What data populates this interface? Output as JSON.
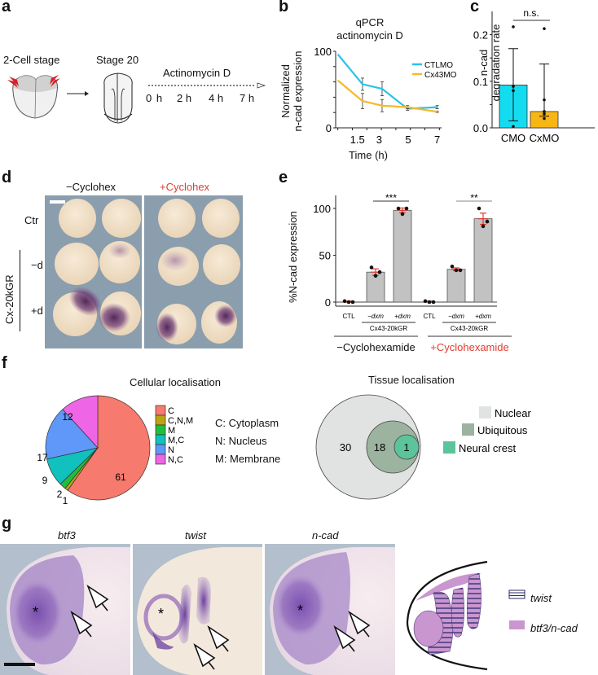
{
  "panels": {
    "a": {
      "label": "a",
      "stage1": "2-Cell stage",
      "stage2": "Stage 20",
      "treatment": "Actinomycin D",
      "timepoints": [
        "0 h",
        "2 h",
        "4 h",
        "7 h"
      ]
    },
    "d": {
      "label": "d",
      "col_minus": "−Cyclohex",
      "col_plus": "+Cyclohex",
      "row_ctr": "Ctr",
      "row_minus_d": "−d",
      "row_plus_d": "+d",
      "group_label": "Cx-20kGR"
    },
    "f": {
      "label": "f",
      "pie_title": "Cellular localisation",
      "key": [
        "C: Cytoplasm",
        "N: Nucleus",
        "M: Membrane"
      ],
      "venn_title": "Tissue localisation"
    },
    "g": {
      "label": "g",
      "images": [
        "btf3",
        "twist",
        "n-cad"
      ],
      "asterisk": "*",
      "legend": [
        {
          "name": "twist",
          "style": "striped"
        },
        {
          "name": "btf3/n-cad",
          "style": "solid",
          "color": "#c996cf"
        }
      ]
    }
  },
  "chart_data": [
    {
      "id": "b",
      "label": "b",
      "type": "line",
      "title": "qPCR\nactinomycin D",
      "title_lines": [
        "qPCR",
        "actinomycin D"
      ],
      "xlabel": "Time (h)",
      "ylabel_lines": [
        "Normalized",
        "n-cad expression"
      ],
      "x": [
        0,
        1.5,
        3,
        5,
        7
      ],
      "xticks": [
        "1.5",
        "3",
        "5",
        "7"
      ],
      "ylim": [
        0,
        100
      ],
      "yticks": [
        "0",
        "100"
      ],
      "series": [
        {
          "name": "CTLMO",
          "color": "#29c3ea",
          "values": [
            96,
            57,
            51,
            25,
            27
          ],
          "err": [
            0,
            8,
            9,
            2,
            2
          ]
        },
        {
          "name": "Cx43MO",
          "color": "#f6b928",
          "values": [
            62,
            35,
            29,
            27,
            21
          ],
          "err": [
            0,
            10,
            8,
            2,
            1
          ]
        }
      ],
      "legend": "top-right"
    },
    {
      "id": "c",
      "label": "c",
      "type": "bar",
      "categories": [
        "CMO",
        "CxMO"
      ],
      "values": [
        0.092,
        0.035
      ],
      "err_low": [
        0.015,
        0.025
      ],
      "err_high": [
        0.17,
        0.137
      ],
      "points": [
        [
          0.217,
          0.089,
          0.08,
          0.003
        ],
        [
          0.213,
          0.06,
          0.035,
          0.03,
          0.02
        ]
      ],
      "colors": [
        "#14dcf0",
        "#f7b614"
      ],
      "ylabel_lines": [
        "n-cad",
        "degradation rate"
      ],
      "ylim": [
        0,
        0.25
      ],
      "yticks": [
        "0.0",
        "0.1",
        "0.2"
      ],
      "annotation": "n.s."
    },
    {
      "id": "e",
      "label": "e",
      "type": "bar",
      "categories": [
        "CTL",
        "−dxm",
        "+dxm",
        "CTL",
        "−dxm",
        "+dxm"
      ],
      "values": [
        0.5,
        32,
        98,
        0.5,
        35,
        89
      ],
      "err": [
        0.5,
        3.5,
        2.5,
        0.5,
        1.5,
        6
      ],
      "points": [
        [
          1,
          0,
          0
        ],
        [
          37,
          28,
          32
        ],
        [
          100,
          94,
          100
        ],
        [
          1,
          0,
          0
        ],
        [
          38,
          34,
          34
        ],
        [
          100,
          81,
          86
        ]
      ],
      "ylabel": "%N-cad expression",
      "ylim": [
        0,
        110
      ],
      "yticks": [
        "0",
        "50",
        "100"
      ],
      "subgroup_label": "Cx43-20kGR",
      "groups": [
        {
          "name": "−Cyclohexamide",
          "color": "#111111"
        },
        {
          "name": "+Cyclohexamide",
          "color": "#e23b2e"
        }
      ],
      "significance": [
        "***",
        "**"
      ],
      "bar_color": "#c2c2c2",
      "err_color": "#e23b2e"
    },
    {
      "id": "f-pie",
      "type": "pie",
      "title": "Cellular localisation",
      "categories": [
        "C",
        "C,N,M",
        "M",
        "M,C",
        "N",
        "N,C"
      ],
      "values": [
        61,
        1,
        2,
        9,
        17,
        12
      ],
      "colors": [
        "#f67a6d",
        "#bba315",
        "#20be3f",
        "#10c1be",
        "#5f98f9",
        "#ee65e6"
      ],
      "legend": "right"
    },
    {
      "id": "f-venn",
      "type": "venn",
      "title": "Tissue localisation",
      "sets": [
        {
          "name": "Nuclear",
          "value": 30,
          "color": "#e1e2e2"
        },
        {
          "name": "Ubiquitous",
          "value": 18,
          "color": "#9bb39f"
        },
        {
          "name": "Neural crest",
          "value": 1,
          "color": "#5bc49a"
        }
      ]
    }
  ]
}
